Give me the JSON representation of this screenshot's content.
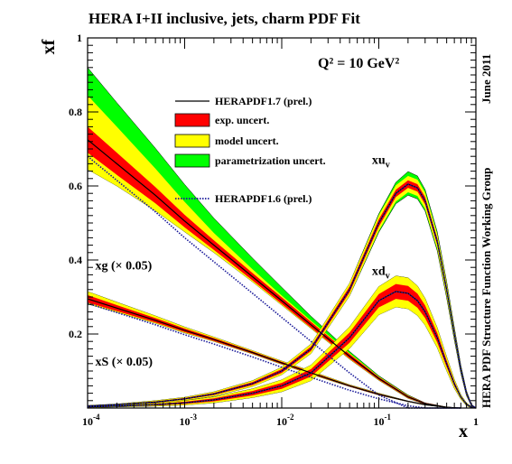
{
  "chart_data": {
    "type": "line",
    "title": "HERA I+II inclusive, jets, charm PDF Fit",
    "ylabel": "xf",
    "xlabel": "x",
    "annotation_q2": "Q² = 10 GeV²",
    "side_label_top": "June 2011",
    "side_label_bottom": "HERA PDF Structure Function Working Group",
    "x_scale": "log",
    "xlim": [
      0.0001,
      1
    ],
    "ylim": [
      0,
      1
    ],
    "x_ticks": [
      {
        "value": 0.0001,
        "base": "10",
        "exp": "-4"
      },
      {
        "value": 0.001,
        "base": "10",
        "exp": "-3"
      },
      {
        "value": 0.01,
        "base": "10",
        "exp": "-2"
      },
      {
        "value": 0.1,
        "base": "10",
        "exp": "-1"
      },
      {
        "value": 1,
        "base": "1",
        "exp": ""
      }
    ],
    "y_ticks": [
      {
        "value": 0.2,
        "label": "0.2"
      },
      {
        "value": 0.4,
        "label": "0.4"
      },
      {
        "value": 0.6,
        "label": "0.6"
      },
      {
        "value": 0.8,
        "label": "0.8"
      },
      {
        "value": 1.0,
        "label": "1"
      }
    ],
    "legend": {
      "placement": "top-center",
      "entries": [
        {
          "label": "HERAPDF1.7 (prel.)",
          "style": "line",
          "color": "#000000"
        },
        {
          "label": "exp. uncert.",
          "style": "box",
          "color": "#ff0000"
        },
        {
          "label": "model uncert.",
          "style": "box",
          "color": "#ffff00"
        },
        {
          "label": "parametrization uncert.",
          "style": "box",
          "color": "#00ff00"
        },
        {
          "label": "HERAPDF1.6 (prel.)",
          "style": "dotted",
          "color": "#1a1a9a"
        }
      ]
    },
    "series": [
      {
        "name": "xg (× 0.05)",
        "x": [
          0.0001,
          0.0002,
          0.0005,
          0.001,
          0.002,
          0.005,
          0.01,
          0.02,
          0.05,
          0.1,
          0.2,
          0.3,
          0.5,
          0.7
        ],
        "central": [
          0.725,
          0.66,
          0.575,
          0.505,
          0.44,
          0.355,
          0.29,
          0.225,
          0.14,
          0.08,
          0.03,
          0.012,
          0.002,
          0.0
        ],
        "exp_band": [
          0.035,
          0.03,
          0.022,
          0.017,
          0.013,
          0.01,
          0.009,
          0.008,
          0.006,
          0.004,
          0.003,
          0.002,
          0.001,
          0.0
        ],
        "model_up": [
          0.085,
          0.07,
          0.05,
          0.035,
          0.02,
          0.01,
          0.005,
          0.003,
          0.002,
          0.001,
          0.001,
          0.0,
          0.0,
          0.0
        ],
        "model_dn": [
          0.045,
          0.03,
          0.02,
          0.012,
          0.007,
          0.004,
          0.003,
          0.002,
          0.002,
          0.001,
          0.001,
          0.0,
          0.0,
          0.0
        ],
        "param_up": [
          0.075,
          0.065,
          0.055,
          0.047,
          0.04,
          0.03,
          0.022,
          0.012,
          0.005,
          0.002,
          0.001,
          0.0,
          0.0,
          0.0
        ],
        "param_dn": [
          0.0,
          0.0,
          0.0,
          0.0,
          0.0,
          0.0,
          0.0,
          0.0,
          0.0,
          0.0,
          0.0,
          0.0,
          0.0,
          0.0
        ],
        "old_offset": -0.045,
        "label_pos": {
          "x": 0.00012,
          "y": 0.375
        }
      },
      {
        "name": "xS (× 0.05)",
        "x": [
          0.0001,
          0.0002,
          0.0005,
          0.001,
          0.002,
          0.005,
          0.01,
          0.02,
          0.05,
          0.1,
          0.2,
          0.3,
          0.5,
          0.7
        ],
        "central": [
          0.295,
          0.27,
          0.237,
          0.21,
          0.185,
          0.15,
          0.122,
          0.095,
          0.06,
          0.037,
          0.018,
          0.009,
          0.002,
          0.0
        ],
        "exp_band": [
          0.01,
          0.008,
          0.006,
          0.005,
          0.004,
          0.003,
          0.003,
          0.003,
          0.002,
          0.002,
          0.001,
          0.001,
          0.0,
          0.0
        ],
        "model_up": [
          0.01,
          0.008,
          0.006,
          0.004,
          0.003,
          0.002,
          0.002,
          0.002,
          0.001,
          0.001,
          0.0,
          0.0,
          0.0,
          0.0
        ],
        "model_dn": [
          0.004,
          0.003,
          0.002,
          0.002,
          0.001,
          0.001,
          0.001,
          0.001,
          0.0,
          0.0,
          0.0,
          0.0,
          0.0,
          0.0
        ],
        "param_up": [
          0.0,
          0.0,
          0.0,
          0.0,
          0.0,
          0.0,
          0.0,
          0.0,
          0.0,
          0.0,
          0.0,
          0.0,
          0.0,
          0.0
        ],
        "param_dn": [
          0.0,
          0.0,
          0.0,
          0.0,
          0.0,
          0.0,
          0.0,
          0.0,
          0.0,
          0.0,
          0.0,
          0.0,
          0.0,
          0.0
        ],
        "old_offset": -0.012,
        "label_pos": {
          "x": 0.00012,
          "y": 0.115
        }
      },
      {
        "name": "xu",
        "subscript": "v",
        "x": [
          0.0001,
          0.0002,
          0.0005,
          0.001,
          0.002,
          0.005,
          0.01,
          0.02,
          0.05,
          0.1,
          0.15,
          0.2,
          0.25,
          0.3,
          0.4,
          0.5,
          0.6,
          0.7,
          0.8,
          0.9,
          1.0
        ],
        "central": [
          0.005,
          0.009,
          0.016,
          0.025,
          0.038,
          0.066,
          0.1,
          0.16,
          0.32,
          0.5,
          0.58,
          0.605,
          0.595,
          0.56,
          0.45,
          0.32,
          0.2,
          0.105,
          0.04,
          0.008,
          0.0
        ],
        "exp_band": [
          0.001,
          0.001,
          0.002,
          0.002,
          0.003,
          0.004,
          0.005,
          0.006,
          0.008,
          0.01,
          0.01,
          0.01,
          0.01,
          0.01,
          0.009,
          0.008,
          0.006,
          0.004,
          0.003,
          0.001,
          0.0
        ],
        "model_up": [
          0.001,
          0.001,
          0.002,
          0.002,
          0.003,
          0.004,
          0.005,
          0.007,
          0.009,
          0.011,
          0.012,
          0.012,
          0.012,
          0.012,
          0.011,
          0.01,
          0.008,
          0.005,
          0.003,
          0.001,
          0.0
        ],
        "model_dn": [
          0.001,
          0.001,
          0.002,
          0.002,
          0.003,
          0.004,
          0.005,
          0.007,
          0.009,
          0.011,
          0.012,
          0.012,
          0.012,
          0.012,
          0.011,
          0.01,
          0.008,
          0.005,
          0.003,
          0.001,
          0.0
        ],
        "param_up": [
          0.0,
          0.0,
          0.0,
          0.0,
          0.0,
          0.0,
          0.0,
          0.0,
          0.0,
          0.004,
          0.008,
          0.012,
          0.01,
          0.008,
          0.006,
          0.004,
          0.003,
          0.002,
          0.001,
          0.0,
          0.0
        ],
        "param_dn": [
          0.0,
          0.0,
          0.0,
          0.0,
          0.0,
          0.0,
          0.0,
          0.0,
          0.0,
          0.004,
          0.006,
          0.008,
          0.008,
          0.006,
          0.005,
          0.004,
          0.003,
          0.002,
          0.001,
          0.0,
          0.0
        ],
        "old_offset": 0.0,
        "label_pos": {
          "x": 0.085,
          "y": 0.66
        }
      },
      {
        "name": "xd",
        "subscript": "v",
        "x": [
          0.0001,
          0.0002,
          0.0005,
          0.001,
          0.002,
          0.005,
          0.01,
          0.02,
          0.05,
          0.1,
          0.15,
          0.2,
          0.25,
          0.3,
          0.4,
          0.5,
          0.6,
          0.7,
          0.8,
          0.9,
          1.0
        ],
        "central": [
          0.003,
          0.005,
          0.009,
          0.014,
          0.022,
          0.04,
          0.06,
          0.095,
          0.19,
          0.29,
          0.315,
          0.31,
          0.29,
          0.26,
          0.19,
          0.12,
          0.065,
          0.03,
          0.01,
          0.002,
          0.0
        ],
        "exp_band": [
          0.001,
          0.001,
          0.002,
          0.003,
          0.004,
          0.006,
          0.008,
          0.01,
          0.014,
          0.018,
          0.02,
          0.02,
          0.019,
          0.017,
          0.013,
          0.009,
          0.006,
          0.003,
          0.002,
          0.001,
          0.0
        ],
        "model_up": [
          0.001,
          0.001,
          0.002,
          0.003,
          0.004,
          0.006,
          0.008,
          0.011,
          0.015,
          0.02,
          0.022,
          0.022,
          0.021,
          0.019,
          0.014,
          0.01,
          0.006,
          0.003,
          0.002,
          0.001,
          0.0
        ],
        "model_dn": [
          0.001,
          0.001,
          0.002,
          0.003,
          0.004,
          0.006,
          0.008,
          0.011,
          0.015,
          0.02,
          0.022,
          0.022,
          0.021,
          0.019,
          0.014,
          0.01,
          0.006,
          0.003,
          0.002,
          0.001,
          0.0
        ],
        "param_up": [
          0.0,
          0.0,
          0.0,
          0.0,
          0.0,
          0.0,
          0.0,
          0.0,
          0.0,
          0.0,
          0.0,
          0.0,
          0.0,
          0.0,
          0.0,
          0.0,
          0.0,
          0.0,
          0.0,
          0.0,
          0.0
        ],
        "param_dn": [
          0.0,
          0.0,
          0.0,
          0.0,
          0.0,
          0.0,
          0.0,
          0.0,
          0.0,
          0.0,
          0.0,
          0.0,
          0.0,
          0.0,
          0.0,
          0.0,
          0.0,
          0.0,
          0.0,
          0.0,
          0.0
        ],
        "old_offset": 0.0,
        "label_pos": {
          "x": 0.085,
          "y": 0.36
        }
      }
    ],
    "colors": {
      "exp": "#ff0000",
      "model": "#ffff00",
      "param": "#00ff00",
      "central": "#000000",
      "old": "#1a1a9a"
    }
  }
}
